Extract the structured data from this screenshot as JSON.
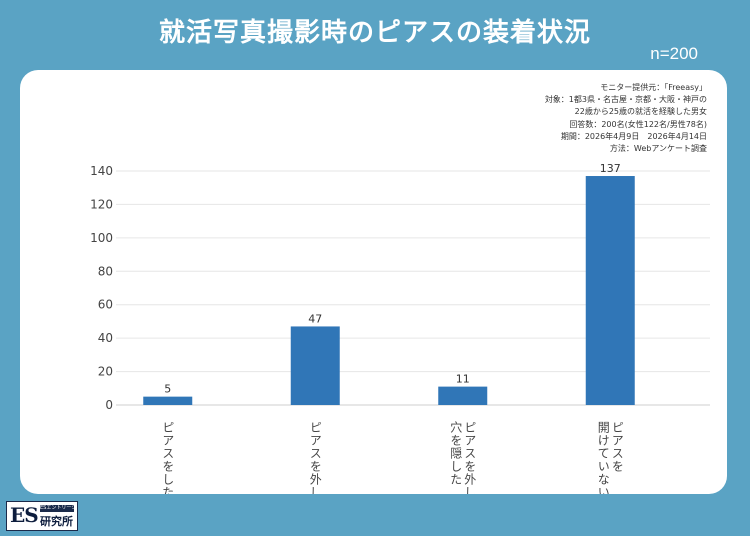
{
  "header": {
    "title": "就活写真撮影時のピアスの装着状況",
    "sample_size": "n=200"
  },
  "notes": [
    "モニター提供元：「Freeasy」",
    "対象：1都3県・名古屋・京都・大阪・神戸の",
    "22歳から25歳の就活を経験した男女",
    "回答数：200名(女性122名/男性78名)",
    "期間：2026年4月9日　2026年4月14日",
    "方法：Webアンケート調査"
  ],
  "chart_data": {
    "type": "bar",
    "categories": [
      [
        "ピアスをした"
      ],
      [
        "ピアスを外した"
      ],
      [
        "ピアスを外し",
        "穴を隠した"
      ],
      [
        "ピアスを",
        "開けていない"
      ]
    ],
    "values": [
      5,
      47,
      11,
      137
    ],
    "y_ticks": [
      0,
      20,
      40,
      60,
      80,
      100,
      120,
      140
    ],
    "ylim": [
      0,
      140
    ],
    "grid": true,
    "bar_color": "#3076b7",
    "grid_color": "#e6e6e6"
  },
  "logo": {
    "main": "ES",
    "ribbon": "ESエントリーシート",
    "text": "研究所"
  },
  "colors": {
    "background": "#5aa3c4",
    "card": "#ffffff"
  }
}
